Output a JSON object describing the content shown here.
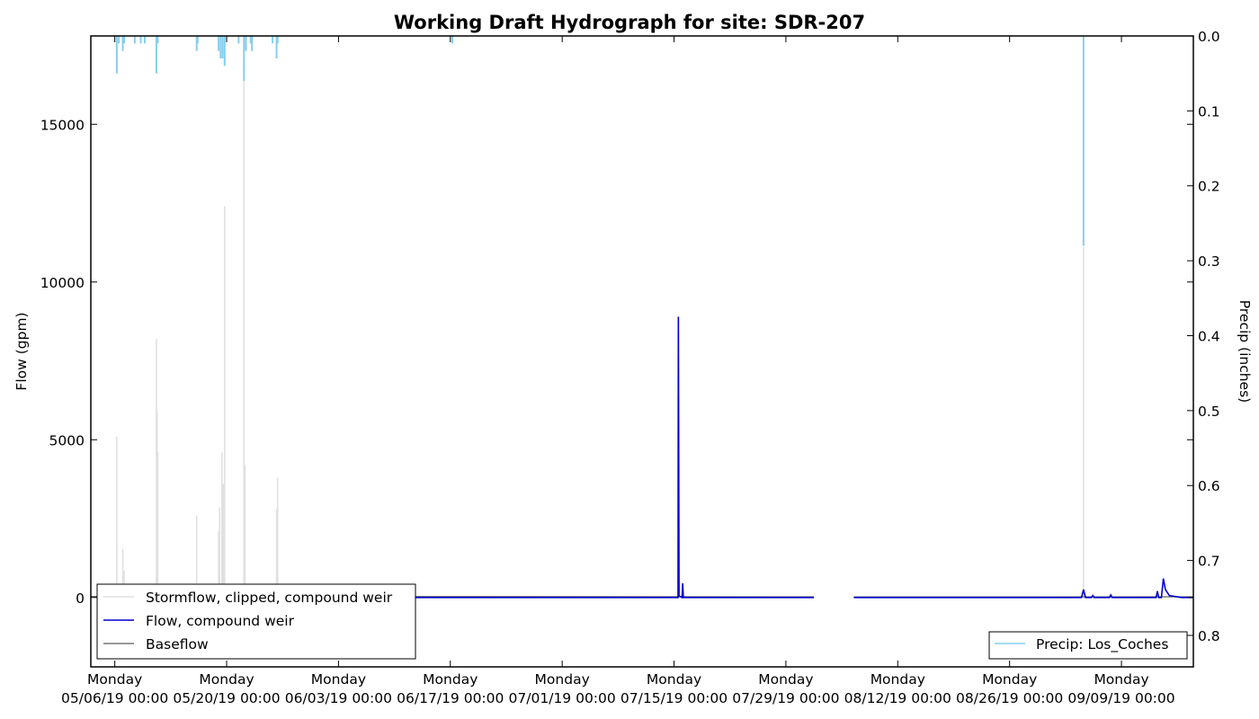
{
  "chart_data": {
    "type": "line",
    "title": "Working Draft Hydrograph for site: SDR-207",
    "ylabel": "Flow (gpm)",
    "y2label": "Precip (inches)",
    "xlim": [
      "2019-05-03",
      "2019-09-18"
    ],
    "ylim": [
      -2200,
      17800
    ],
    "y2lim": [
      0.0,
      0.842
    ],
    "y2_inverted": true,
    "yticks": [
      0,
      5000,
      10000,
      15000
    ],
    "y2ticks": [
      "0.0",
      "0.1",
      "0.2",
      "0.3",
      "0.4",
      "0.5",
      "0.6",
      "0.7",
      "0.8"
    ],
    "xticks": [
      {
        "x": "2019-05-06",
        "l1": "Monday",
        "l2": "05/06/19 00:00"
      },
      {
        "x": "2019-05-20",
        "l1": "Monday",
        "l2": "05/20/19 00:00"
      },
      {
        "x": "2019-06-03",
        "l1": "Monday",
        "l2": "06/03/19 00:00"
      },
      {
        "x": "2019-06-17",
        "l1": "Monday",
        "l2": "06/17/19 00:00"
      },
      {
        "x": "2019-07-01",
        "l1": "Monday",
        "l2": "07/01/19 00:00"
      },
      {
        "x": "2019-07-15",
        "l1": "Monday",
        "l2": "07/15/19 00:00"
      },
      {
        "x": "2019-07-29",
        "l1": "Monday",
        "l2": "07/29/19 00:00"
      },
      {
        "x": "2019-08-12",
        "l1": "Monday",
        "l2": "08/12/19 00:00"
      },
      {
        "x": "2019-08-26",
        "l1": "Monday",
        "l2": "08/26/19 00:00"
      },
      {
        "x": "2019-09-09",
        "l1": "Monday",
        "l2": "09/09/19 00:00"
      }
    ],
    "grid": false,
    "legend_left": {
      "placement": "lower-left",
      "entries": [
        "Stormflow, clipped, compound weir",
        "Flow, compound weir",
        "Baseflow"
      ]
    },
    "legend_right": {
      "placement": "lower-right",
      "entries": [
        "Precip: Los_Coches"
      ]
    },
    "series": [
      {
        "name": "Stormflow, clipped, compound weir",
        "color": "#e0e0e0",
        "kind": "spikes",
        "points": [
          [
            "2019-05-06 06:00",
            5100
          ],
          [
            "2019-05-07 00:00",
            1550
          ],
          [
            "2019-05-07 04:00",
            850
          ],
          [
            "2019-05-11 05:00",
            8200
          ],
          [
            "2019-05-11 07:00",
            5900
          ],
          [
            "2019-05-11 09:00",
            4600
          ],
          [
            "2019-05-16 06:00",
            2600
          ],
          [
            "2019-05-19 00:00",
            2100
          ],
          [
            "2019-05-19 03:00",
            2850
          ],
          [
            "2019-05-19 10:00",
            4600
          ],
          [
            "2019-05-19 14:00",
            3600
          ],
          [
            "2019-05-19 18:00",
            12400
          ],
          [
            "2019-05-22 04:00",
            16400
          ],
          [
            "2019-05-22 07:00",
            4200
          ],
          [
            "2019-05-26 06:00",
            2800
          ],
          [
            "2019-05-26 09:00",
            3800
          ],
          [
            "2019-09-04 06:00",
            11100
          ]
        ]
      },
      {
        "name": "Flow, compound weir",
        "color": "#0000cc",
        "kind": "line",
        "segments": [
          [
            [
              "2019-05-26 12:00",
              0
            ],
            [
              "2019-07-15 12:00",
              0
            ],
            [
              "2019-07-15 13:00",
              8900
            ],
            [
              "2019-07-15 15:00",
              50
            ],
            [
              "2019-07-16 00:00",
              0
            ],
            [
              "2019-07-16 02:00",
              450
            ],
            [
              "2019-07-16 04:00",
              0
            ],
            [
              "2019-08-01 12:00",
              0
            ]
          ],
          [
            [
              "2019-08-06 12:00",
              0
            ],
            [
              "2019-09-04 00:00",
              0
            ],
            [
              "2019-09-04 06:00",
              250
            ],
            [
              "2019-09-04 12:00",
              0
            ],
            [
              "2019-09-05 06:00",
              0
            ],
            [
              "2019-09-05 10:00",
              60
            ],
            [
              "2019-09-05 14:00",
              0
            ],
            [
              "2019-09-07 12:00",
              0
            ],
            [
              "2019-09-07 16:00",
              80
            ],
            [
              "2019-09-07 20:00",
              0
            ],
            [
              "2019-09-13 08:00",
              0
            ],
            [
              "2019-09-13 12:00",
              200
            ],
            [
              "2019-09-13 16:00",
              0
            ],
            [
              "2019-09-14 00:00",
              0
            ],
            [
              "2019-09-14 06:00",
              600
            ],
            [
              "2019-09-14 12:00",
              250
            ],
            [
              "2019-09-15 00:00",
              60
            ],
            [
              "2019-09-16 12:00",
              0
            ],
            [
              "2019-09-18 00:00",
              0
            ]
          ]
        ]
      },
      {
        "name": "Baseflow",
        "color": "#777777",
        "kind": "line",
        "segments": [
          [
            [
              "2019-05-03 00:00",
              30
            ],
            [
              "2019-06-20 00:00",
              30
            ],
            [
              "2019-07-29 00:00",
              20
            ],
            [
              "2019-08-01 12:00",
              20
            ]
          ],
          [
            [
              "2019-08-06 12:00",
              15
            ],
            [
              "2019-09-18 00:00",
              20
            ]
          ]
        ]
      },
      {
        "name": "Precip: Los_Coches",
        "color": "#87ceeb",
        "kind": "inverted-bars",
        "axis": "right",
        "points": [
          [
            "2019-05-06 06:00",
            0.05
          ],
          [
            "2019-05-06 12:00",
            0.01
          ],
          [
            "2019-05-07 00:00",
            0.02
          ],
          [
            "2019-05-07 04:00",
            0.01
          ],
          [
            "2019-05-08 12:00",
            0.01
          ],
          [
            "2019-05-09 06:00",
            0.01
          ],
          [
            "2019-05-09 18:00",
            0.01
          ],
          [
            "2019-05-11 05:00",
            0.05
          ],
          [
            "2019-05-11 09:00",
            0.01
          ],
          [
            "2019-05-16 06:00",
            0.02
          ],
          [
            "2019-05-16 09:00",
            0.01
          ],
          [
            "2019-05-19 00:00",
            0.02
          ],
          [
            "2019-05-19 06:00",
            0.03
          ],
          [
            "2019-05-19 12:00",
            0.03
          ],
          [
            "2019-05-19 18:00",
            0.04
          ],
          [
            "2019-05-21 12:00",
            0.01
          ],
          [
            "2019-05-22 04:00",
            0.06
          ],
          [
            "2019-05-22 10:00",
            0.02
          ],
          [
            "2019-05-23 00:00",
            0.01
          ],
          [
            "2019-05-23 04:00",
            0.02
          ],
          [
            "2019-05-25 18:00",
            0.01
          ],
          [
            "2019-05-26 06:00",
            0.03
          ],
          [
            "2019-05-26 09:00",
            0.01
          ],
          [
            "2019-06-17 06:00",
            0.01
          ],
          [
            "2019-09-04 06:00",
            0.28
          ]
        ]
      }
    ]
  }
}
